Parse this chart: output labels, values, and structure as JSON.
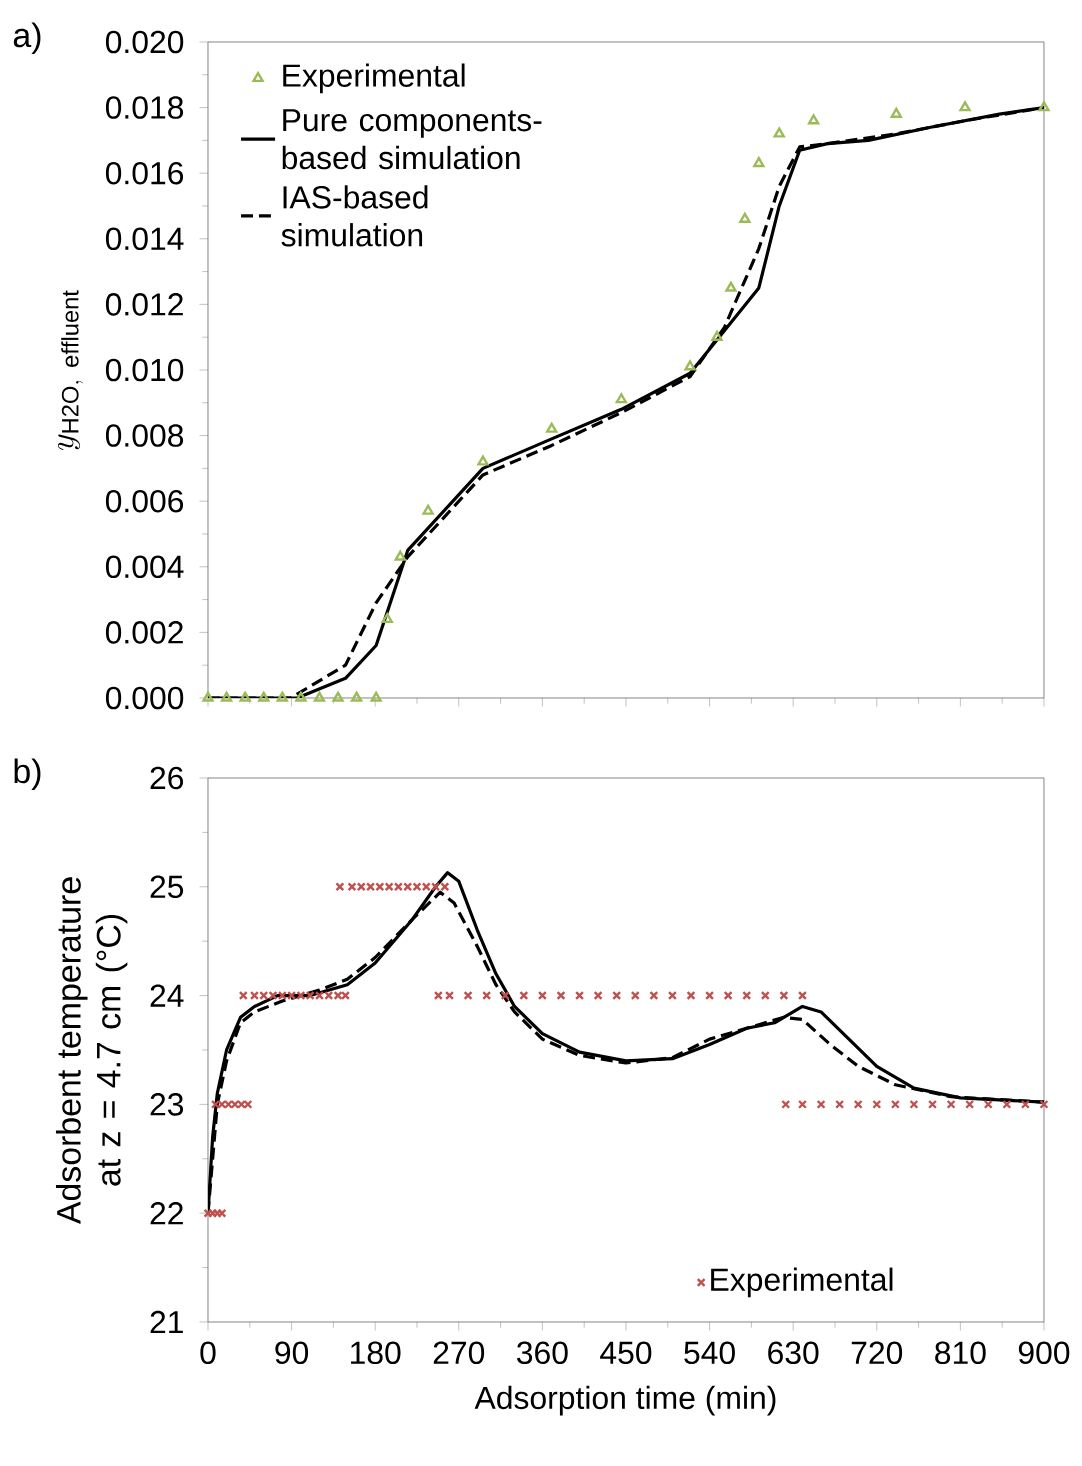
{
  "chart_data": [
    {
      "type": "line",
      "annotations": [
        "a)"
      ],
      "ylabel": "y_{\\mathrm{H2O,\\ effluent}}",
      "xlim": [
        0,
        900
      ],
      "xticks": [
        0,
        90,
        180,
        270,
        360,
        450,
        540,
        630,
        720,
        810,
        900
      ],
      "ylim": [
        0,
        0.02
      ],
      "yticks": [
        {
          "value": 0,
          "label": "0.000"
        },
        {
          "value": 0.002,
          "label": "0.002"
        },
        {
          "value": 0.004,
          "label": "0.004"
        },
        {
          "value": 0.006,
          "label": "0.006"
        },
        {
          "value": 0.008,
          "label": "0.008"
        },
        {
          "value": 0.01,
          "label": "0.010"
        },
        {
          "value": 0.012,
          "label": "0.012"
        },
        {
          "value": 0.014,
          "label": "0.014"
        },
        {
          "value": 0.016,
          "label": "0.016"
        },
        {
          "value": 0.018,
          "label": "0.018"
        },
        {
          "value": 0.02,
          "label": "0.020"
        }
      ],
      "tick_labels": "y",
      "legend": "top left",
      "series": [
        {
          "name": "Experimental",
          "type": "scatter",
          "marker": "triangle",
          "color": "#9bbb59",
          "x": [
            0,
            20,
            40,
            60,
            80,
            100,
            120,
            140,
            160,
            181,
            193,
            207,
            237,
            296,
            370,
            445,
            519,
            548,
            563,
            578,
            593,
            615,
            652,
            741,
            815,
            900
          ],
          "values": [
            0,
            0,
            0,
            0,
            0,
            0,
            0,
            0,
            0,
            0,
            0.0024,
            0.0043,
            0.0057,
            0.0072,
            0.0082,
            0.0091,
            0.0101,
            0.011,
            0.0125,
            0.0146,
            0.0163,
            0.0172,
            0.0176,
            0.0178,
            0.018,
            0.018
          ]
        },
        {
          "name": "Pure components-based simulation",
          "type": "line",
          "marker": "none",
          "line_style": "solid",
          "color": "#000000",
          "x": [
            0,
            96,
            148,
            181,
            215,
            296,
            370,
            445,
            519,
            556,
            593,
            615,
            637,
            667,
            711,
            778,
            852,
            900
          ],
          "values": [
            0,
            0,
            0.0006,
            0.0016,
            0.0045,
            0.007,
            0.0079,
            0.0088,
            0.0099,
            0.0112,
            0.0125,
            0.015,
            0.0167,
            0.0169,
            0.017,
            0.0174,
            0.0178,
            0.018
          ]
        },
        {
          "name": "IAS-based simulation",
          "type": "line",
          "marker": "none",
          "line_style": "dashed",
          "color": "#000000",
          "x": [
            0,
            89,
            148,
            181,
            215,
            296,
            370,
            445,
            519,
            556,
            593,
            615,
            637,
            667,
            741,
            815,
            900
          ],
          "values": [
            0,
            0,
            0.001,
            0.0029,
            0.0043,
            0.0068,
            0.0077,
            0.0087,
            0.0098,
            0.0113,
            0.0137,
            0.0156,
            0.0168,
            0.0169,
            0.0172,
            0.0176,
            0.018
          ]
        }
      ]
    },
    {
      "type": "line",
      "annotations": [
        "b)"
      ],
      "xlabel": "Adsorption time (min)",
      "ylabel": "Adsorbent temperature at z = 4.7 cm (°C)",
      "xlim": [
        0,
        900
      ],
      "xticks": [
        0,
        90,
        180,
        270,
        360,
        450,
        540,
        630,
        720,
        810,
        900
      ],
      "ylim": [
        21,
        26
      ],
      "yticks": [
        21,
        22,
        23,
        24,
        25,
        26
      ],
      "legend": "bottom right",
      "series": [
        {
          "name": "Experimental",
          "type": "scatter",
          "marker": "cross",
          "color": "#c0504d",
          "x": [
            0,
            5,
            10,
            15,
            8,
            15,
            22,
            29,
            36,
            43,
            38,
            50,
            60,
            70,
            80,
            90,
            100,
            110,
            120,
            130,
            140,
            148,
            142,
            155,
            165,
            175,
            185,
            195,
            205,
            215,
            225,
            235,
            245,
            255,
            248,
            260,
            280,
            300,
            320,
            340,
            360,
            380,
            400,
            420,
            440,
            460,
            480,
            500,
            520,
            540,
            560,
            580,
            600,
            620,
            640,
            622,
            640,
            660,
            680,
            700,
            720,
            740,
            760,
            780,
            800,
            820,
            840,
            860,
            880,
            900
          ],
          "values": [
            22,
            22,
            22,
            22,
            23,
            23,
            23,
            23,
            23,
            23,
            24,
            24,
            24,
            24,
            24,
            24,
            24,
            24,
            24,
            24,
            24,
            24,
            25,
            25,
            25,
            25,
            25,
            25,
            25,
            25,
            25,
            25,
            25,
            25,
            24,
            24,
            24,
            24,
            24,
            24,
            24,
            24,
            24,
            24,
            24,
            24,
            24,
            24,
            24,
            24,
            24,
            24,
            24,
            24,
            24,
            23,
            23,
            23,
            23,
            23,
            23,
            23,
            23,
            23,
            23,
            23,
            23,
            23,
            23,
            23
          ]
        },
        {
          "type": "line",
          "marker": "none",
          "line_style": "solid",
          "color": "#000000",
          "x": [
            0,
            5,
            10,
            20,
            35,
            50,
            75,
            110,
            150,
            180,
            220,
            245,
            258,
            270,
            290,
            310,
            330,
            360,
            400,
            450,
            500,
            540,
            580,
            610,
            640,
            660,
            690,
            720,
            760,
            810,
            900
          ],
          "values": [
            22,
            22.7,
            23.1,
            23.5,
            23.8,
            23.9,
            24,
            24,
            24.1,
            24.3,
            24.7,
            25,
            25.13,
            25.05,
            24.6,
            24.2,
            23.9,
            23.65,
            23.48,
            23.4,
            23.42,
            23.55,
            23.7,
            23.75,
            23.9,
            23.85,
            23.6,
            23.35,
            23.15,
            23.06,
            23.02
          ]
        },
        {
          "type": "line",
          "marker": "none",
          "line_style": "dashed",
          "color": "#000000",
          "x": [
            0,
            10,
            20,
            35,
            50,
            80,
            120,
            150,
            180,
            220,
            250,
            265,
            290,
            310,
            330,
            360,
            400,
            450,
            500,
            540,
            580,
            620,
            640,
            670,
            700,
            740,
            800,
            900
          ],
          "values": [
            22,
            23,
            23.4,
            23.75,
            23.85,
            23.95,
            24.05,
            24.15,
            24.35,
            24.7,
            24.95,
            24.85,
            24.45,
            24.1,
            23.85,
            23.6,
            23.45,
            23.38,
            23.43,
            23.6,
            23.7,
            23.8,
            23.78,
            23.55,
            23.35,
            23.18,
            23.07,
            23.02
          ]
        }
      ]
    }
  ]
}
